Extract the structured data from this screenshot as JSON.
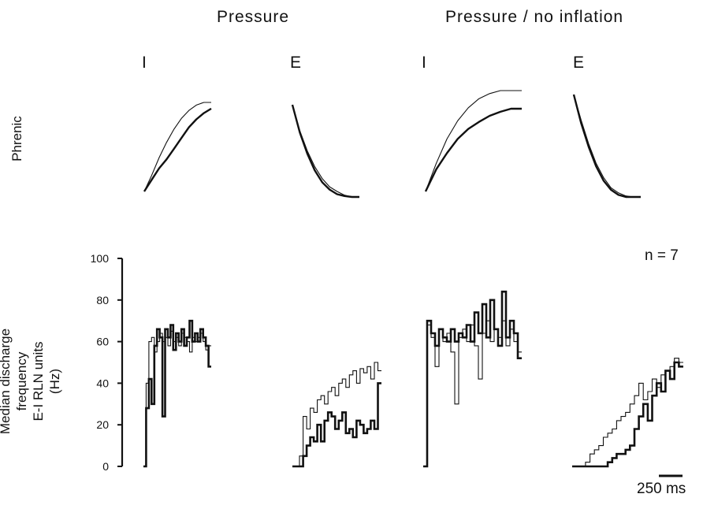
{
  "headers": {
    "pressure": "Pressure",
    "pressure_no_inflation": "Pressure / no inflation"
  },
  "phase_labels": {
    "pressure_i": "I",
    "pressure_e": "E",
    "no_inflation_i": "I",
    "no_inflation_e": "E"
  },
  "phrenic_label": "Phrenic",
  "ylabel_lines": [
    "Median discharge",
    "frequency",
    "E-I RLN units",
    "(Hz)"
  ],
  "n_label": "n = 7",
  "scale_label": "250 ms",
  "colors": {
    "stroke": "#111111"
  },
  "chart_data": [
    {
      "type": "line",
      "title": "Phrenic",
      "panels": [
        {
          "condition": "Pressure",
          "phase": "I",
          "series": [
            {
              "style": "thin",
              "values": [
                0.0,
                0.18,
                0.38,
                0.55,
                0.7,
                0.82,
                0.91,
                0.97,
                1.0,
                1.0
              ]
            },
            {
              "style": "thick",
              "values": [
                0.0,
                0.13,
                0.26,
                0.36,
                0.48,
                0.6,
                0.72,
                0.81,
                0.88,
                0.93
              ]
            }
          ]
        },
        {
          "condition": "Pressure",
          "phase": "E",
          "series": [
            {
              "style": "thin",
              "values": [
                1.0,
                0.72,
                0.5,
                0.33,
                0.2,
                0.11,
                0.06,
                0.02,
                0.0,
                0.0
              ]
            },
            {
              "style": "thick",
              "values": [
                1.0,
                0.7,
                0.47,
                0.29,
                0.16,
                0.08,
                0.03,
                0.01,
                0.0,
                0.0
              ]
            }
          ]
        },
        {
          "condition": "Pressure / no inflation",
          "phase": "I",
          "series": [
            {
              "style": "thin",
              "values": [
                0.0,
                0.28,
                0.52,
                0.7,
                0.83,
                0.92,
                0.97,
                1.0,
                1.0,
                1.0
              ]
            },
            {
              "style": "thick",
              "values": [
                0.0,
                0.22,
                0.38,
                0.52,
                0.62,
                0.69,
                0.75,
                0.79,
                0.82,
                0.82
              ]
            }
          ]
        },
        {
          "condition": "Pressure / no inflation",
          "phase": "E",
          "series": [
            {
              "style": "thin",
              "values": [
                1.0,
                0.75,
                0.52,
                0.33,
                0.19,
                0.09,
                0.04,
                0.01,
                0.0,
                0.0
              ]
            },
            {
              "style": "thick",
              "values": [
                1.0,
                0.72,
                0.49,
                0.3,
                0.16,
                0.07,
                0.02,
                0.0,
                0.0,
                0.0
              ]
            }
          ]
        }
      ]
    },
    {
      "type": "line",
      "ylabel": "Median discharge frequency E-I RLN units (Hz)",
      "ylim": [
        0,
        100
      ],
      "yticks": [
        0,
        20,
        40,
        60,
        80,
        100
      ],
      "scale_bar_ms": 250,
      "panels": [
        {
          "condition": "Pressure",
          "phase": "I",
          "series": [
            {
              "style": "thin",
              "values": [
                0,
                40,
                60,
                62,
                55,
                60,
                64,
                60,
                62,
                58,
                65,
                60,
                62,
                58,
                64,
                62,
                60,
                55,
                62,
                60,
                62,
                64,
                60,
                56,
                58
              ]
            },
            {
              "style": "thick",
              "values": [
                0,
                28,
                42,
                30,
                58,
                66,
                62,
                24,
                66,
                62,
                68,
                56,
                64,
                60,
                66,
                58,
                62,
                70,
                60,
                64,
                60,
                66,
                62,
                58,
                48
              ]
            }
          ]
        },
        {
          "condition": "Pressure",
          "phase": "E",
          "series": [
            {
              "style": "thin",
              "values": [
                0,
                0,
                5,
                24,
                18,
                28,
                26,
                32,
                34,
                30,
                36,
                38,
                34,
                40,
                42,
                38,
                44,
                46,
                40,
                47,
                45,
                48,
                42,
                50,
                46
              ]
            },
            {
              "style": "thick",
              "values": [
                0,
                0,
                0,
                5,
                10,
                14,
                12,
                20,
                12,
                22,
                26,
                24,
                18,
                22,
                26,
                16,
                18,
                14,
                22,
                20,
                16,
                18,
                22,
                18,
                40
              ]
            }
          ]
        },
        {
          "condition": "Pressure / no inflation",
          "phase": "I",
          "series": [
            {
              "style": "thin",
              "values": [
                0,
                68,
                62,
                48,
                66,
                60,
                64,
                55,
                30,
                62,
                66,
                60,
                68,
                58,
                42,
                64,
                70,
                60,
                66,
                62,
                70,
                58,
                66,
                60,
                55
              ]
            },
            {
              "style": "thick",
              "values": [
                0,
                70,
                64,
                58,
                66,
                62,
                60,
                66,
                60,
                64,
                62,
                68,
                60,
                74,
                64,
                78,
                62,
                80,
                66,
                58,
                84,
                62,
                70,
                64,
                52
              ]
            }
          ]
        },
        {
          "condition": "Pressure / no inflation",
          "phase": "E",
          "series": [
            {
              "style": "thin",
              "values": [
                0,
                0,
                0,
                2,
                6,
                8,
                10,
                14,
                16,
                18,
                22,
                24,
                26,
                30,
                34,
                40,
                32,
                36,
                42,
                38,
                44,
                46,
                48,
                52,
                50
              ]
            },
            {
              "style": "thick",
              "values": [
                0,
                0,
                0,
                0,
                0,
                0,
                0,
                0,
                2,
                4,
                6,
                6,
                8,
                10,
                18,
                24,
                30,
                22,
                34,
                40,
                36,
                46,
                42,
                50,
                48
              ]
            }
          ]
        }
      ]
    }
  ]
}
